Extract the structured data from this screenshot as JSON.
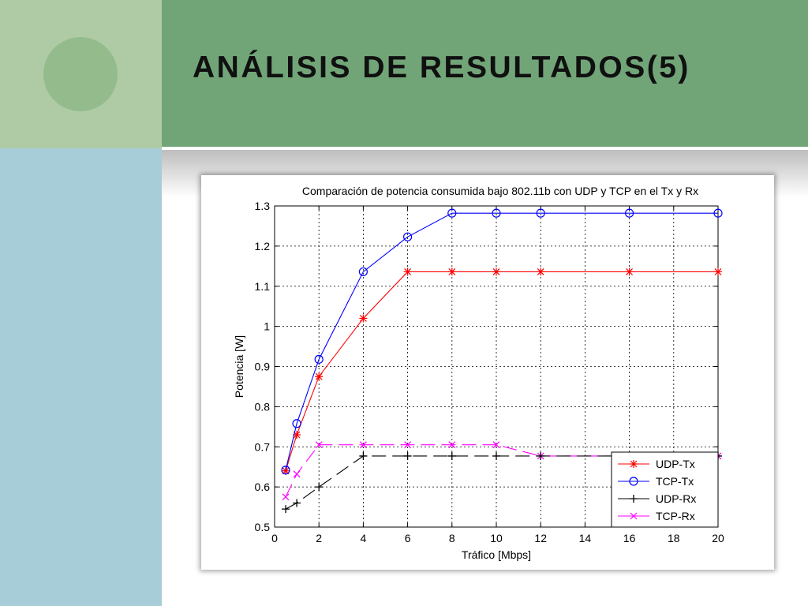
{
  "slide": {
    "title": "ANÁLISIS DE RESULTADOS(5)",
    "colors": {
      "header": "#71a578",
      "left_top": "#aecba6",
      "left_bottom": "#a7cdd8",
      "circle": "#94bb8b"
    }
  },
  "chart_data": {
    "type": "line",
    "title": "Comparación de potencia consumida bajo 802.11b con UDP y TCP en el Tx y Rx",
    "xlabel": "Tráfico [Mbps]",
    "ylabel": "Potencia [W]",
    "xlim": [
      0,
      20
    ],
    "ylim": [
      0.5,
      1.3
    ],
    "xticks": [
      "0",
      "2",
      "4",
      "6",
      "8",
      "10",
      "12",
      "14",
      "16",
      "18",
      "20"
    ],
    "yticks": [
      "0.5",
      "0.6",
      "0.7",
      "0.8",
      "0.9",
      "1",
      "1.1",
      "1.2",
      "1.3"
    ],
    "grid": true,
    "legend_position": "bottom-right",
    "series": [
      {
        "name": "UDP-Tx",
        "color": "#ff0000",
        "marker": "asterisk",
        "line": "solid",
        "x": [
          0.5,
          1,
          2,
          4,
          6,
          8,
          10,
          12,
          16,
          20
        ],
        "y": [
          0.64,
          0.73,
          0.875,
          1.02,
          1.136,
          1.136,
          1.136,
          1.136,
          1.136,
          1.136
        ]
      },
      {
        "name": "TCP-Tx",
        "color": "#0000ff",
        "marker": "circle",
        "line": "solid",
        "x": [
          0.5,
          1,
          2,
          4,
          6,
          8,
          10,
          12,
          16,
          20
        ],
        "y": [
          0.642,
          0.758,
          0.918,
          1.136,
          1.223,
          1.282,
          1.282,
          1.282,
          1.282,
          1.282
        ]
      },
      {
        "name": "UDP-Rx",
        "color": "#000000",
        "marker": "plus",
        "line": "dashed",
        "x": [
          0.5,
          1,
          2,
          4,
          6,
          8,
          10,
          12,
          16,
          20
        ],
        "y": [
          0.545,
          0.56,
          0.6,
          0.677,
          0.677,
          0.677,
          0.677,
          0.677,
          0.677,
          0.677
        ]
      },
      {
        "name": "TCP-Rx",
        "color": "#ff00ff",
        "marker": "x",
        "line": "dashed",
        "x": [
          0.5,
          1,
          2,
          4,
          6,
          8,
          10,
          12,
          16,
          20
        ],
        "y": [
          0.575,
          0.632,
          0.705,
          0.705,
          0.705,
          0.705,
          0.705,
          0.677,
          0.677,
          0.677
        ]
      }
    ]
  }
}
